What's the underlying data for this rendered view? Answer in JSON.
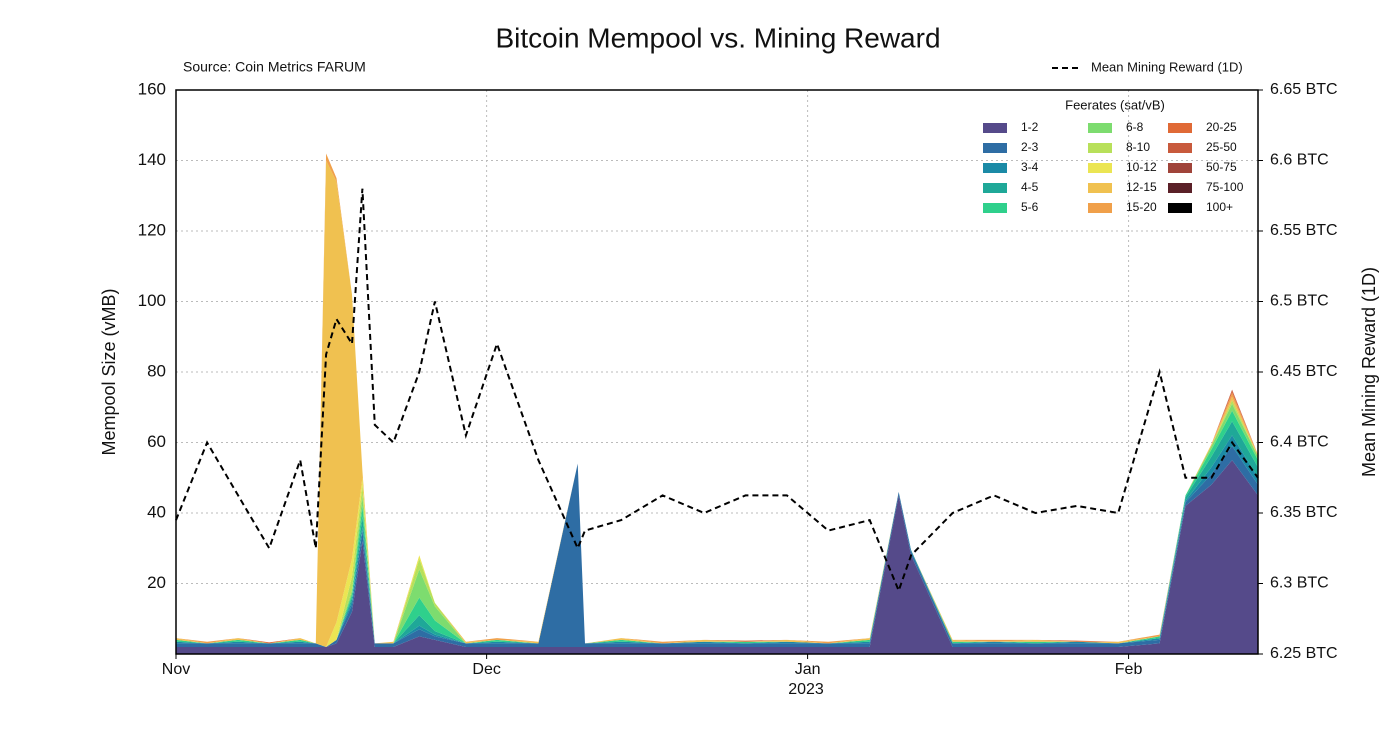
{
  "chart_data": {
    "type": "area",
    "title": "Bitcoin Mempool vs. Mining Reward",
    "subtitle": "Source: Coin Metrics FARUM",
    "y_label": "Mempool Size (vMB)",
    "y2_label": "Mean Mining Reward (1D)",
    "legend_title": "Feerates (sat/vB)",
    "x_year_label": "2023",
    "grid": true,
    "legend": "upper right",
    "xlim": [
      0,
      104.5
    ],
    "xticks": [
      {
        "value": 0,
        "label": "Nov"
      },
      {
        "value": 30,
        "label": "Dec"
      },
      {
        "value": 61,
        "label": "Jan"
      },
      {
        "value": 92,
        "label": "Feb"
      }
    ],
    "ylim": [
      0,
      160
    ],
    "yticks": [
      20,
      40,
      60,
      80,
      100,
      120,
      140,
      160
    ],
    "y2lim": [
      6.25,
      6.65
    ],
    "y2ticks": [
      {
        "value": 6.25,
        "label": "6.25 BTC"
      },
      {
        "value": 6.3,
        "label": "6.3 BTC"
      },
      {
        "value": 6.35,
        "label": "6.35 BTC"
      },
      {
        "value": 6.4,
        "label": "6.4 BTC"
      },
      {
        "value": 6.45,
        "label": "6.45 BTC"
      },
      {
        "value": 6.5,
        "label": "6.5 BTC"
      },
      {
        "value": 6.55,
        "label": "6.55 BTC"
      },
      {
        "value": 6.6,
        "label": "6.6 BTC"
      },
      {
        "value": 6.65,
        "label": "6.65 BTC"
      }
    ],
    "x": [
      0,
      3,
      6,
      9,
      12,
      13.5,
      14.5,
      15.5,
      17,
      18,
      19.2,
      21,
      23.5,
      25,
      28,
      31,
      35,
      38.8,
      39.5,
      43,
      47,
      51,
      55,
      59,
      63,
      67,
      69.8,
      71,
      75,
      79,
      83,
      87,
      91,
      95,
      97.5,
      100,
      102,
      104.5
    ],
    "series": [
      {
        "name": "1-2",
        "color": "#554a8a",
        "values": [
          2,
          2,
          2,
          2,
          2,
          2,
          2,
          3,
          12,
          32,
          2,
          2,
          5,
          4,
          2,
          2,
          2,
          2,
          2,
          2,
          2,
          2,
          2,
          2,
          2,
          2,
          45,
          28,
          2,
          2,
          2,
          2,
          2,
          3,
          42,
          48,
          55,
          45
        ]
      },
      {
        "name": "2-3",
        "color": "#2e6da4",
        "values": [
          1,
          1,
          1,
          1,
          1,
          1,
          0,
          1,
          2,
          3,
          1,
          1,
          2,
          1,
          1,
          1,
          1,
          52,
          1,
          1,
          1,
          1,
          1,
          1,
          1,
          1,
          1,
          1,
          1,
          1,
          1,
          1,
          1,
          1,
          1,
          3,
          4,
          3
        ]
      },
      {
        "name": "3-4",
        "color": "#1b8aa6",
        "values": [
          0.5,
          0,
          0.5,
          0,
          0.5,
          0,
          0,
          0,
          1,
          1,
          0,
          0,
          1,
          0.5,
          0,
          0.5,
          0,
          0,
          0,
          0.5,
          0,
          0.5,
          0,
          0.5,
          0,
          0.5,
          0,
          0.5,
          0,
          0.5,
          0,
          0.5,
          0,
          0.5,
          0.5,
          2,
          3,
          2
        ]
      },
      {
        "name": "4-5",
        "color": "#1fa898",
        "values": [
          0,
          0,
          0,
          0,
          0,
          0,
          0,
          0,
          1,
          3,
          0,
          0,
          3,
          1,
          0,
          0,
          0,
          0,
          0,
          0,
          0,
          0,
          0,
          0,
          0,
          0,
          0,
          0,
          0,
          0,
          0,
          0,
          0,
          0,
          1,
          3,
          4,
          3
        ]
      },
      {
        "name": "5-6",
        "color": "#2fd08c",
        "values": [
          0.5,
          0,
          0.5,
          0,
          0.5,
          0,
          0,
          0,
          1,
          3,
          0,
          0,
          5,
          3,
          0,
          0.5,
          0,
          0,
          0,
          0.5,
          0,
          0,
          0.5,
          0,
          0,
          0.5,
          0,
          0,
          0.5,
          0,
          0.5,
          0,
          0,
          0.5,
          0.5,
          2,
          3,
          2
        ]
      },
      {
        "name": "6-8",
        "color": "#7ddc6f",
        "values": [
          0,
          0,
          0,
          0,
          0,
          0,
          0,
          0,
          1,
          3,
          0,
          0,
          8,
          4,
          0,
          0,
          0,
          0,
          0,
          0,
          0,
          0,
          0,
          0,
          0,
          0,
          0,
          0,
          0,
          0,
          0,
          0,
          0,
          0,
          0,
          1,
          2,
          1
        ]
      },
      {
        "name": "8-10",
        "color": "#b8e05a",
        "values": [
          0,
          0,
          0,
          0,
          0,
          0,
          0,
          0,
          4,
          3,
          0,
          0,
          3,
          1,
          0,
          0,
          0,
          0,
          0,
          0,
          0,
          0,
          0,
          0,
          0,
          0,
          0,
          0,
          0,
          0,
          0,
          0,
          0,
          0,
          0,
          0,
          1,
          0
        ]
      },
      {
        "name": "10-12",
        "color": "#ebe553",
        "values": [
          0,
          0,
          0,
          0,
          0,
          0,
          0,
          5,
          5,
          2,
          0,
          0,
          1,
          0,
          0,
          0,
          0,
          0,
          0,
          0,
          0,
          0,
          0,
          0,
          0,
          0,
          0,
          0,
          0,
          0,
          0,
          0,
          0,
          0,
          0,
          0,
          0,
          0
        ]
      },
      {
        "name": "12-15",
        "color": "#f0c150",
        "values": [
          0.5,
          0,
          0.5,
          0,
          0.5,
          0,
          138,
          125,
          75,
          2,
          0,
          0.5,
          0,
          0,
          0.5,
          0,
          0.5,
          0,
          0,
          0.5,
          0,
          0.5,
          0,
          0.5,
          0,
          0.5,
          0,
          0,
          0.5,
          0,
          0.5,
          0,
          0.5,
          0,
          0,
          0.5,
          1,
          0.5
        ]
      },
      {
        "name": "15-20",
        "color": "#f0a04a",
        "values": [
          0,
          0.5,
          0,
          0,
          0,
          0,
          2,
          1,
          0,
          0,
          0,
          0,
          0,
          0,
          0,
          0.5,
          0,
          0,
          0,
          0,
          0.5,
          0,
          0,
          0,
          0.5,
          0,
          0,
          0,
          0,
          0.5,
          0,
          0,
          0,
          0.5,
          0,
          0,
          1,
          0
        ]
      },
      {
        "name": "20-25",
        "color": "#e06a36",
        "values": [
          0,
          0,
          0,
          0.3,
          0,
          0,
          0,
          0,
          0,
          0,
          0,
          0,
          0,
          0,
          0,
          0,
          0,
          0,
          0,
          0,
          0,
          0,
          0.3,
          0,
          0,
          0,
          0,
          0,
          0,
          0,
          0,
          0.3,
          0,
          0,
          0,
          0,
          0.5,
          0
        ]
      },
      {
        "name": "25-50",
        "color": "#c85a3c",
        "values": [
          0,
          0,
          0,
          0,
          0,
          0,
          0,
          0,
          0,
          0,
          0,
          0,
          0,
          0,
          0,
          0,
          0,
          0,
          0,
          0,
          0,
          0,
          0,
          0,
          0,
          0,
          0,
          0,
          0,
          0,
          0,
          0,
          0,
          0,
          0,
          0,
          0.5,
          0
        ]
      },
      {
        "name": "50-75",
        "color": "#a0443a",
        "values": [
          0,
          0,
          0,
          0,
          0,
          0,
          0,
          0,
          0,
          0,
          0,
          0,
          0,
          0,
          0,
          0,
          0,
          0,
          0,
          0,
          0,
          0,
          0,
          0,
          0,
          0,
          0,
          0,
          0,
          0,
          0,
          0,
          0,
          0,
          0,
          0,
          0,
          0
        ]
      },
      {
        "name": "75-100",
        "color": "#5a2028",
        "values": [
          0,
          0,
          0,
          0,
          0,
          0,
          0,
          0,
          0,
          0,
          0,
          0,
          0,
          0,
          0,
          0,
          0,
          0,
          0,
          0,
          0,
          0,
          0,
          0,
          0,
          0,
          0,
          0,
          0,
          0,
          0,
          0,
          0,
          0,
          0,
          0,
          0,
          0
        ]
      },
      {
        "name": "100+",
        "color": "#000000",
        "values": [
          0,
          0,
          0,
          0,
          0,
          0,
          0,
          0,
          0,
          0,
          0,
          0,
          0,
          0,
          0,
          0,
          0,
          0,
          0,
          0,
          0,
          0,
          0,
          0,
          0,
          0,
          0,
          0,
          0,
          0,
          0,
          0,
          0,
          0,
          0,
          0,
          0,
          0
        ]
      },
      {
        "name": "Mean Mining Reward (1D)",
        "color": "#000000",
        "type": "line",
        "axis": "y2",
        "dashed": true,
        "values": [
          6.345,
          6.4,
          6.3625,
          6.325,
          6.3875,
          6.325,
          6.4625,
          6.4875,
          6.47,
          6.58,
          6.4125,
          6.4,
          6.45,
          6.5,
          6.405,
          6.47,
          6.3875,
          6.325,
          6.3375,
          6.345,
          6.3625,
          6.35,
          6.3625,
          6.3625,
          6.3375,
          6.345,
          6.295,
          6.32,
          6.35,
          6.3625,
          6.35,
          6.355,
          6.35,
          6.45,
          6.375,
          6.375,
          6.4,
          6.375
        ]
      }
    ]
  }
}
